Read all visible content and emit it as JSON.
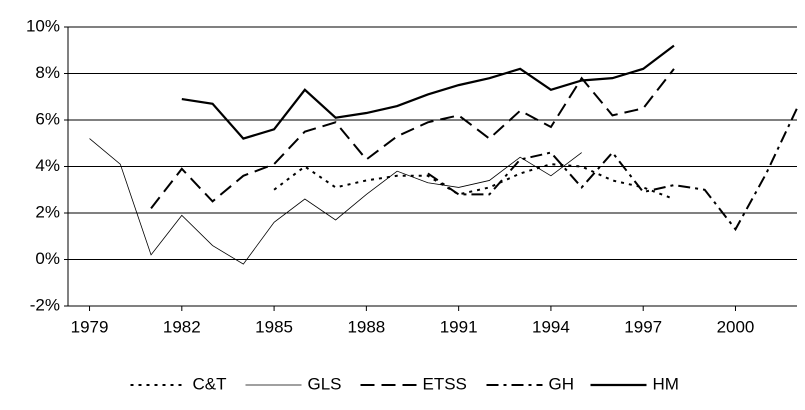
{
  "chart_data": {
    "type": "line",
    "x": [
      1979,
      1980,
      1981,
      1982,
      1983,
      1984,
      1985,
      1986,
      1987,
      1988,
      1989,
      1990,
      1991,
      1992,
      1993,
      1994,
      1995,
      1996,
      1997,
      1998,
      1999,
      2000,
      2001,
      2002
    ],
    "series": [
      {
        "name": "C&T",
        "color": "#000000",
        "line_style": "dotted",
        "values": [
          null,
          null,
          null,
          null,
          null,
          null,
          3.0,
          4.0,
          3.1,
          3.4,
          3.6,
          3.6,
          2.8,
          3.1,
          3.7,
          4.1,
          4.0,
          3.4,
          3.1,
          2.6,
          null,
          null,
          null,
          null
        ]
      },
      {
        "name": "GLS",
        "color": "#000000",
        "line_style": "thin",
        "values": [
          5.2,
          4.1,
          0.2,
          1.9,
          0.6,
          -0.2,
          1.6,
          2.6,
          1.7,
          2.8,
          3.8,
          3.3,
          3.1,
          3.4,
          4.4,
          3.6,
          4.6,
          null,
          null,
          null,
          null,
          null,
          null,
          null
        ]
      },
      {
        "name": "ETSS",
        "color": "#000000",
        "line_style": "dashed",
        "values": [
          null,
          null,
          2.2,
          3.9,
          2.5,
          3.6,
          4.1,
          5.5,
          5.9,
          4.3,
          5.3,
          5.9,
          6.2,
          5.2,
          6.4,
          5.7,
          7.8,
          6.2,
          6.5,
          8.2,
          null,
          null,
          null,
          null
        ]
      },
      {
        "name": "GH",
        "color": "#000000",
        "line_style": "dash-dot",
        "values": [
          null,
          null,
          null,
          null,
          null,
          null,
          null,
          null,
          null,
          null,
          null,
          3.7,
          2.8,
          2.8,
          4.3,
          4.6,
          3.1,
          4.6,
          2.9,
          3.2,
          3.0,
          1.3,
          3.7,
          6.5
        ]
      },
      {
        "name": "HM",
        "color": "#000000",
        "line_style": "solid",
        "values": [
          null,
          null,
          null,
          6.9,
          6.7,
          5.2,
          5.6,
          7.3,
          6.1,
          6.3,
          6.6,
          7.1,
          7.5,
          7.8,
          8.2,
          7.3,
          7.7,
          7.8,
          8.2,
          9.2,
          null,
          null,
          null,
          null
        ]
      }
    ],
    "xlim": [
      1978.3,
      2002
    ],
    "xticks": [
      1979,
      1982,
      1985,
      1988,
      1991,
      1994,
      1997,
      2000
    ],
    "ylim": [
      -2,
      10
    ],
    "yticks": [
      {
        "value": -2,
        "label": "-2%"
      },
      {
        "value": 0,
        "label": "0%"
      },
      {
        "value": 2,
        "label": "2%"
      },
      {
        "value": 4,
        "label": "4%"
      },
      {
        "value": 6,
        "label": "6%"
      },
      {
        "value": 8,
        "label": "8%"
      },
      {
        "value": 10,
        "label": "10%"
      }
    ],
    "grid": true,
    "legend": "bottom"
  }
}
